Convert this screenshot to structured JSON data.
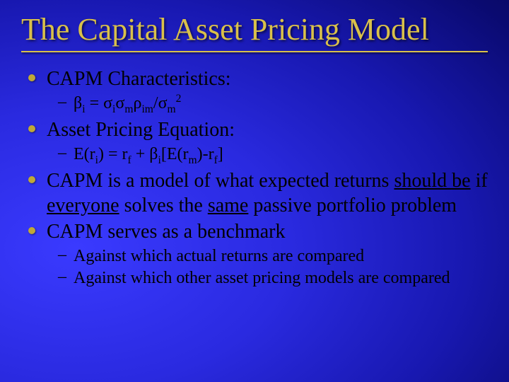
{
  "slide": {
    "title": "The Capital Asset Pricing Model",
    "background": {
      "gradient_center_color": "#3a3aff",
      "gradient_mid_color": "#1818b0",
      "gradient_edge_color": "#040445"
    },
    "title_color": "#d9c04a",
    "title_fontsize": 44,
    "body_color": "#000000",
    "main_fontsize": 28,
    "sub_fontsize": 24,
    "bullet_color": "#c0a838",
    "bullets": [
      {
        "text": "CAPM Characteristics:",
        "sub": [
          {
            "formula": "beta_i = sigma_i sigma_m rho_im / sigma_m^2",
            "display": " β<sub>i</sub> = σ<sub>i</sub>σ<sub>m</sub>ρ<sub>im</sub>/σ<sub>m</sub><sup>2</sup>"
          }
        ]
      },
      {
        "text": "Asset Pricing Equation:",
        "sub": [
          {
            "formula": "E(r_i) = r_f + beta_i [E(r_m) - r_f]",
            "display": "E(r<sub>i</sub>) = r<sub>f</sub> + β<sub>i</sub>[E(r<sub>m</sub>)-r<sub>f</sub>]"
          }
        ]
      },
      {
        "html": "CAPM is a model of what expected returns <span class=\"u\">should be</span> if <span class=\"u\">everyone</span> solves the <span class=\"u\">same</span> passive portfolio problem"
      },
      {
        "text": "CAPM serves as a benchmark",
        "sub": [
          {
            "text": "Against which actual returns are compared"
          },
          {
            "text": "Against which other asset pricing models are compared"
          }
        ]
      }
    ]
  }
}
